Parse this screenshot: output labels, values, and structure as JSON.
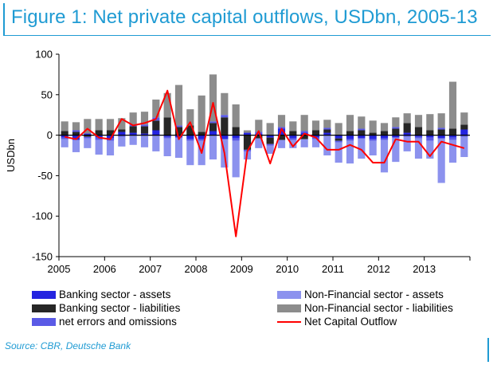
{
  "title": "Figure 1: Net private capital outflows, USDbn, 2005-13",
  "source": "Source: CBR, Deutsche Bank",
  "colors": {
    "banking_assets": "#2424e0",
    "banking_liabilities": "#262626",
    "net_errors": "#5a5ae6",
    "nonfin_assets": "#8c92ee",
    "nonfin_liabilities": "#8c8c8c",
    "net_outflow": "#ff0000"
  },
  "chart_data": {
    "type": "bar",
    "stacked": true,
    "xlabel": "",
    "ylabel": "USDbn",
    "ylim": [
      -150,
      100
    ],
    "yticks": [
      -150,
      -100,
      -50,
      0,
      50,
      100
    ],
    "x_tick_labels": [
      "2005",
      "2006",
      "2007",
      "2008",
      "2009",
      "2010",
      "2011",
      "2012",
      "2013"
    ],
    "quarters": [
      "2005Q1",
      "2005Q2",
      "2005Q3",
      "2005Q4",
      "2006Q1",
      "2006Q2",
      "2006Q3",
      "2006Q4",
      "2007Q1",
      "2007Q2",
      "2007Q3",
      "2007Q4",
      "2008Q1",
      "2008Q2",
      "2008Q3",
      "2008Q4",
      "2009Q1",
      "2009Q2",
      "2009Q3",
      "2009Q4",
      "2010Q1",
      "2010Q2",
      "2010Q3",
      "2010Q4",
      "2011Q1",
      "2011Q2",
      "2011Q3",
      "2011Q4",
      "2012Q1",
      "2012Q2",
      "2012Q3",
      "2012Q4",
      "2013Q1",
      "2013Q2",
      "2013Q3",
      "2013Q4"
    ],
    "series": [
      {
        "name": "Banking sector - assets",
        "values": [
          -3,
          -6,
          2,
          -3,
          -4,
          4,
          3,
          2,
          6,
          -2,
          -3,
          -5,
          -5,
          5,
          -5,
          -4,
          3,
          2,
          -3,
          8,
          -4,
          3,
          -3,
          3,
          -4,
          -5,
          -4,
          -5,
          -4,
          -3,
          3,
          -2,
          -3,
          -4,
          -3,
          7
        ]
      },
      {
        "name": "Banking sector - liabilities",
        "values": [
          5,
          4,
          -2,
          6,
          6,
          3,
          8,
          9,
          12,
          22,
          10,
          12,
          4,
          10,
          22,
          10,
          -18,
          -4,
          -8,
          -6,
          5,
          -5,
          6,
          4,
          -3,
          5,
          6,
          3,
          5,
          8,
          12,
          10,
          6,
          7,
          8,
          6
        ]
      },
      {
        "name": "net errors and omissions",
        "values": [
          -2,
          2,
          -2,
          -3,
          -3,
          -2,
          2,
          2,
          4,
          -2,
          2,
          -2,
          -2,
          2,
          3,
          -3,
          -2,
          2,
          -2,
          2,
          -2,
          2,
          -2,
          2,
          -2,
          -2,
          2,
          -2,
          -2,
          2,
          -2,
          -2,
          -4,
          2,
          -3,
          -2
        ]
      },
      {
        "name": "Non-Financial sector - assets",
        "values": [
          -10,
          -15,
          -12,
          -18,
          -18,
          -12,
          -12,
          -15,
          -20,
          -22,
          -25,
          -30,
          -30,
          -30,
          -35,
          -45,
          -10,
          -12,
          -10,
          -10,
          -10,
          -10,
          -10,
          -25,
          -25,
          -28,
          -25,
          -18,
          -40,
          -30,
          -18,
          -25,
          -22,
          -55,
          -28,
          -25
        ]
      },
      {
        "name": "Non-Financial sector - liabilities",
        "values": [
          12,
          10,
          18,
          14,
          14,
          14,
          15,
          16,
          22,
          30,
          50,
          20,
          45,
          58,
          27,
          28,
          3,
          15,
          15,
          15,
          12,
          20,
          12,
          10,
          15,
          20,
          15,
          15,
          10,
          12,
          12,
          15,
          20,
          18,
          58,
          15
        ]
      }
    ],
    "line": {
      "name": "Net Capital Outflow",
      "values": [
        -2,
        -5,
        8,
        -3,
        -5,
        20,
        12,
        15,
        20,
        55,
        -5,
        16,
        -22,
        40,
        -22,
        -125,
        -20,
        5,
        -35,
        8,
        -14,
        2,
        -3,
        -18,
        -18,
        -12,
        -18,
        -34,
        -34,
        -5,
        -8,
        -8,
        -26,
        -8,
        -12,
        -16
      ]
    },
    "legend": {
      "placement": "bottom",
      "left": [
        "Banking sector - assets",
        "Banking sector - liabilities",
        "net errors and omissions"
      ],
      "right": [
        "Non-Financial sector - assets",
        "Non-Financial sector - liabilities",
        "Net Capital Outflow"
      ]
    },
    "grid": false
  }
}
